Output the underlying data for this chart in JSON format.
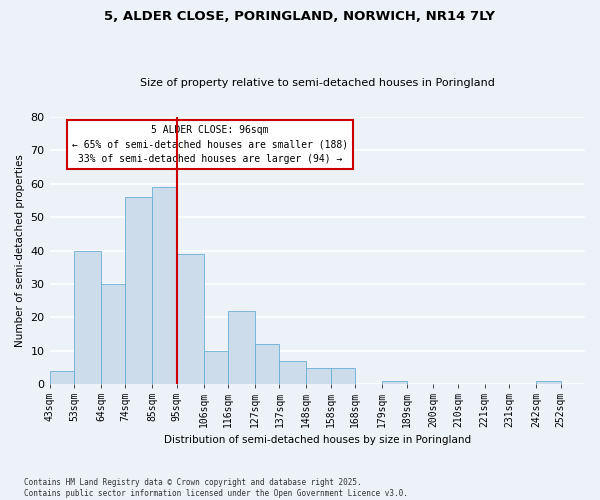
{
  "title": "5, ALDER CLOSE, PORINGLAND, NORWICH, NR14 7LY",
  "subtitle": "Size of property relative to semi-detached houses in Poringland",
  "xlabel": "Distribution of semi-detached houses by size in Poringland",
  "ylabel": "Number of semi-detached properties",
  "footnote1": "Contains HM Land Registry data © Crown copyright and database right 2025.",
  "footnote2": "Contains public sector information licensed under the Open Government Licence v3.0.",
  "bin_labels": [
    "43sqm",
    "53sqm",
    "64sqm",
    "74sqm",
    "85sqm",
    "95sqm",
    "106sqm",
    "116sqm",
    "127sqm",
    "137sqm",
    "148sqm",
    "158sqm",
    "168sqm",
    "179sqm",
    "189sqm",
    "200sqm",
    "210sqm",
    "221sqm",
    "231sqm",
    "242sqm",
    "252sqm"
  ],
  "bin_edges": [
    43,
    53,
    64,
    74,
    85,
    95,
    106,
    116,
    127,
    137,
    148,
    158,
    168,
    179,
    189,
    200,
    210,
    221,
    231,
    242,
    252,
    262
  ],
  "bar_values": [
    4,
    40,
    30,
    56,
    59,
    39,
    10,
    22,
    12,
    7,
    5,
    5,
    0,
    1,
    0,
    0,
    0,
    0,
    0,
    1,
    0
  ],
  "bar_color": "#ccdcea",
  "bar_edge_color": "#6aaed6",
  "property_value": 95,
  "vline_color": "#cc0000",
  "annotation_line1": "5 ALDER CLOSE: 96sqm",
  "annotation_line2": "← 65% of semi-detached houses are smaller (188)",
  "annotation_line3": "33% of semi-detached houses are larger (94) →",
  "annotation_box_color": "#cc0000",
  "ylim": [
    0,
    80
  ],
  "yticks": [
    0,
    10,
    20,
    30,
    40,
    50,
    60,
    70,
    80
  ],
  "background_color": "#edf2f9",
  "grid_color": "#ffffff"
}
